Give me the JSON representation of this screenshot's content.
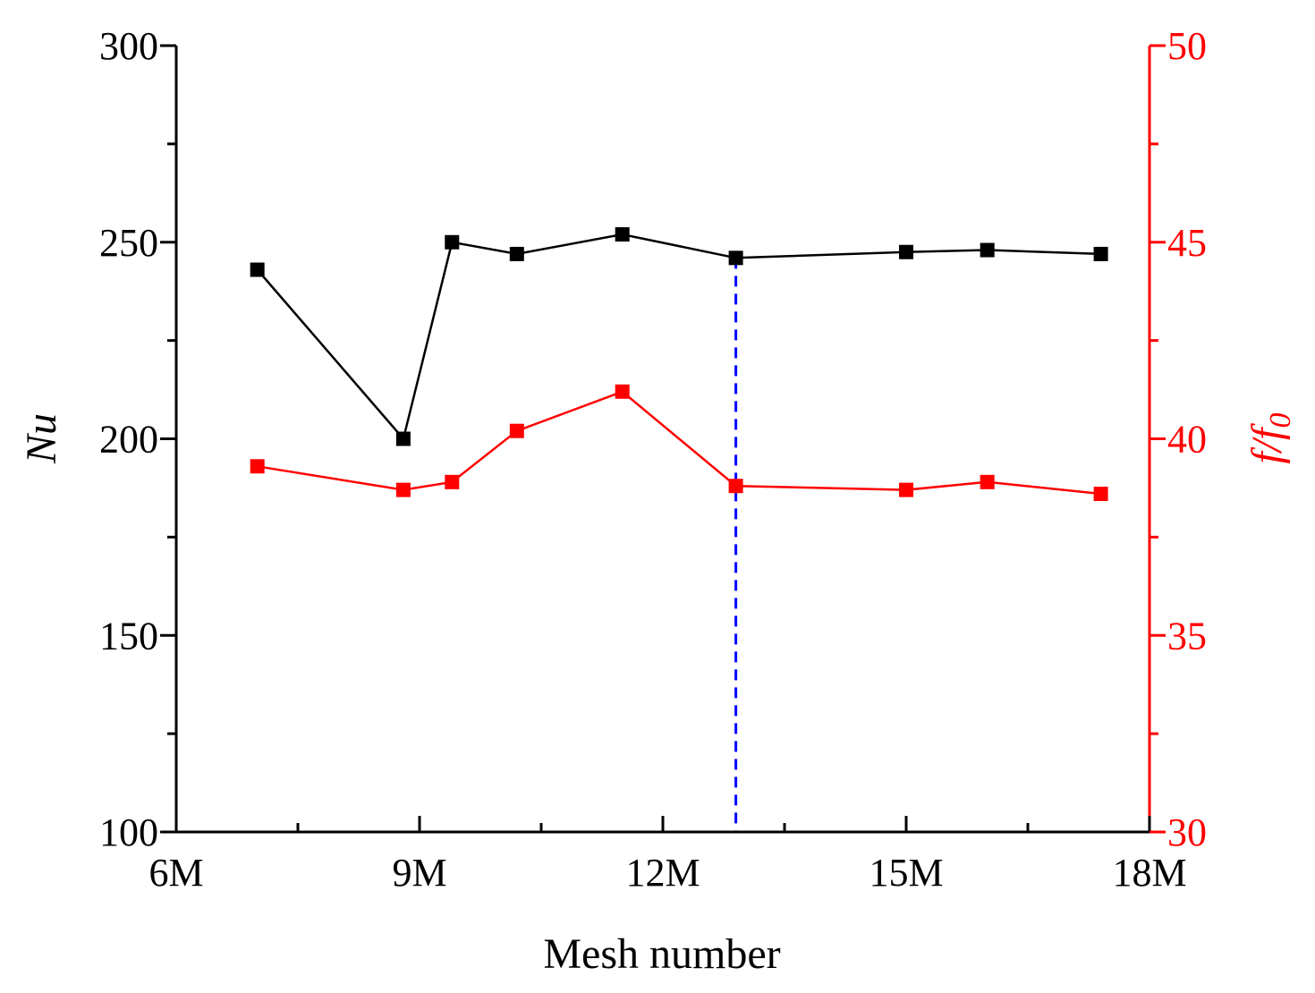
{
  "chart_data": {
    "type": "line",
    "title": "",
    "xlabel": "Mesh number",
    "ylabel": "Nu",
    "y2label": {
      "main": "f/f",
      "sub": "0"
    },
    "xlim": [
      6,
      18
    ],
    "x_ticks": [
      6,
      9,
      12,
      15,
      18
    ],
    "x_tick_labels": [
      "6M",
      "9M",
      "12M",
      "15M",
      "18M"
    ],
    "ylim": [
      100,
      300
    ],
    "y_ticks": [
      100,
      150,
      200,
      250,
      300
    ],
    "y_tick_labels": [
      "100",
      "150",
      "200",
      "250",
      "300"
    ],
    "y2lim": [
      30,
      50
    ],
    "y2_ticks": [
      30,
      35,
      40,
      45,
      50
    ],
    "y2_tick_labels": [
      "30",
      "35",
      "40",
      "45",
      "50"
    ],
    "grid": false,
    "x": [
      7.0,
      8.8,
      9.4,
      10.2,
      11.5,
      12.9,
      15.0,
      16.0,
      17.4
    ],
    "series": [
      {
        "name": "Nu",
        "axis": "left",
        "color": "#000000",
        "marker": "square",
        "values": [
          243,
          200,
          250,
          247,
          252,
          246,
          247.5,
          248,
          247
        ]
      },
      {
        "name": "f/f0",
        "axis": "right",
        "color": "#ff0000",
        "marker": "square",
        "values": [
          39.3,
          38.7,
          38.9,
          40.2,
          41.2,
          38.8,
          38.7,
          38.9,
          38.6
        ]
      }
    ],
    "reference_line": {
      "orientation": "vertical",
      "x": 12.9,
      "style": "dashed",
      "color": "#0000ff"
    }
  }
}
